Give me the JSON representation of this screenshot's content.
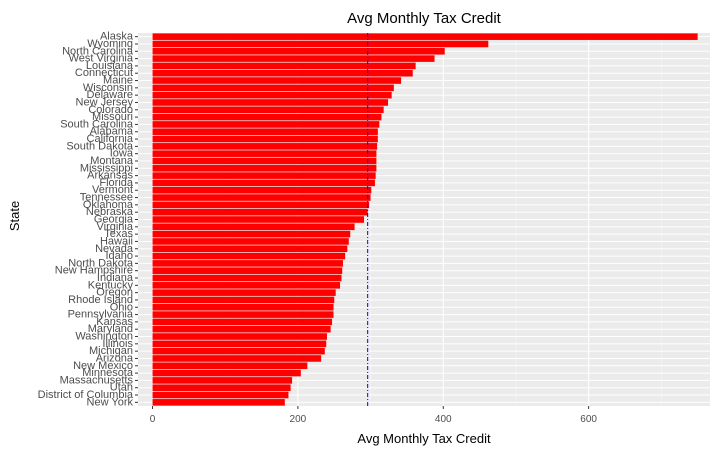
{
  "colors": {
    "panel": "#ebebeb",
    "grid_major": "#ffffff",
    "grid_minor": "#f5f5f5",
    "bar": "#ff0000",
    "mean_line": "#0000ff",
    "tick_text": "#4d4d4d"
  },
  "chart_data": {
    "type": "bar",
    "orientation": "horizontal",
    "title": "Avg Monthly Tax Credit",
    "xlabel": "Avg Monthly Tax Credit",
    "ylabel": "State",
    "xlim": [
      -20,
      767
    ],
    "xticks": [
      0,
      200,
      400,
      600
    ],
    "grid": true,
    "reference_line": {
      "style": "dashed",
      "value": 296
    },
    "categories": [
      "Alaska",
      "Wyoming",
      "North Carolina",
      "West Virginia",
      "Louisiana",
      "Connecticut",
      "Maine",
      "Wisconsin",
      "Delaware",
      "New Jersey",
      "Colorado",
      "Missouri",
      "South Carolina",
      "Alabama",
      "California",
      "South Dakota",
      "Iowa",
      "Montana",
      "Mississippi",
      "Arkansas",
      "Florida",
      "Vermont",
      "Tennessee",
      "Oklahoma",
      "Nebraska",
      "Georgia",
      "Virginia",
      "Texas",
      "Hawaii",
      "Nevada",
      "Idaho",
      "North Dakota",
      "New Hampshire",
      "Indiana",
      "Kentucky",
      "Oregon",
      "Rhode Island",
      "Ohio",
      "Pennsylvania",
      "Kansas",
      "Maryland",
      "Washington",
      "Illinois",
      "Michigan",
      "Arizona",
      "New Mexico",
      "Minnesota",
      "Massachusetts",
      "Utah",
      "District of Columbia",
      "New York"
    ],
    "values": [
      750,
      462,
      402,
      388,
      362,
      358,
      342,
      332,
      329,
      324,
      318,
      315,
      312,
      310,
      310,
      309,
      308,
      308,
      308,
      307,
      306,
      301,
      300,
      298,
      296,
      291,
      278,
      272,
      270,
      268,
      265,
      262,
      261,
      260,
      258,
      252,
      250,
      249,
      249,
      247,
      245,
      240,
      239,
      237,
      232,
      213,
      204,
      192,
      190,
      187,
      182
    ]
  }
}
